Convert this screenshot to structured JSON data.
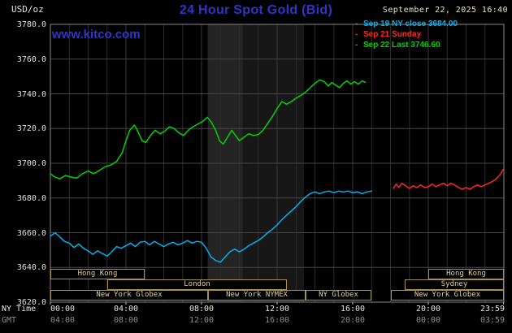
{
  "header": {
    "unit": "USD/oz",
    "title": "24 Hour Spot Gold (Bid)",
    "datetime": "September 22, 2025 16:40",
    "watermark": "www.kitco.com"
  },
  "colors": {
    "kitco_blue": "#3333cc",
    "background": "#000000",
    "grid_h": "#464646",
    "grid_v": "#2c2c2c",
    "axis_border": "#888888",
    "session_border": "#a6914f",
    "session_text": "#ddd09a"
  },
  "legend": [
    {
      "marker": "-",
      "label": "Sep 19 NY close 3684.00",
      "color": "#00b2f2"
    },
    {
      "marker": "-",
      "label": "Sep 21 Sunday",
      "color": "#ff2626"
    },
    {
      "marker": "-",
      "label": "Sep 22 Last 3746.60",
      "color": "#00d400"
    }
  ],
  "axis": {
    "ny_label": "NY Time",
    "gmt_label": "GMT",
    "tick_hours": [
      0,
      4,
      8,
      12,
      16,
      20,
      23.983
    ],
    "ny_ticks": [
      "00:00",
      "04:00",
      "08:00",
      "12:00",
      "16:00",
      "20:00",
      "23:59"
    ],
    "gmt_ticks": [
      "04:00",
      "08:00",
      "12:00",
      "16:00",
      "20:00",
      "00:00",
      "03:59"
    ]
  },
  "chart_data": {
    "type": "line",
    "title": "24 Hour Spot Gold (Bid)",
    "xlabel": "NY Time (hours)",
    "ylabel": "USD/oz",
    "xlim": [
      0,
      24
    ],
    "ylim": [
      3620,
      3780
    ],
    "yticks": [
      3620,
      3640,
      3660,
      3680,
      3700,
      3720,
      3740,
      3760,
      3780
    ],
    "ytick_labels": [
      "3620.0",
      "3640.0",
      "3660.0",
      "3680.0",
      "3700.0",
      "3720.0",
      "3740.0",
      "3760.0",
      "3780.0"
    ],
    "grid": true,
    "legend_position": "top-right",
    "bands": [
      {
        "start": 8.33,
        "end": 13.42,
        "color": "#171717"
      },
      {
        "start": 8.33,
        "end": 10.17,
        "color": "#242424"
      }
    ],
    "series": [
      {
        "name": "Sep 19 NY close",
        "close_value": 3684.0,
        "color": "#00b2f2",
        "points": [
          [
            0,
            3658
          ],
          [
            0.25,
            3660
          ],
          [
            0.5,
            3657.5
          ],
          [
            0.75,
            3655
          ],
          [
            1,
            3654
          ],
          [
            1.25,
            3651.5
          ],
          [
            1.5,
            3653.5
          ],
          [
            1.75,
            3651
          ],
          [
            2,
            3649.5
          ],
          [
            2.25,
            3647.5
          ],
          [
            2.5,
            3649.5
          ],
          [
            2.75,
            3648
          ],
          [
            3,
            3646.5
          ],
          [
            3.25,
            3649
          ],
          [
            3.5,
            3652
          ],
          [
            3.75,
            3651
          ],
          [
            4,
            3652.5
          ],
          [
            4.25,
            3654
          ],
          [
            4.5,
            3652
          ],
          [
            4.75,
            3654.5
          ],
          [
            5,
            3655
          ],
          [
            5.25,
            3653
          ],
          [
            5.5,
            3655
          ],
          [
            5.75,
            3653.5
          ],
          [
            6,
            3652
          ],
          [
            6.25,
            3653.5
          ],
          [
            6.5,
            3654.5
          ],
          [
            6.75,
            3653
          ],
          [
            7,
            3654
          ],
          [
            7.25,
            3655.5
          ],
          [
            7.5,
            3654
          ],
          [
            7.75,
            3655
          ],
          [
            8,
            3654.5
          ],
          [
            8.25,
            3651
          ],
          [
            8.5,
            3646
          ],
          [
            8.75,
            3644
          ],
          [
            9,
            3643
          ],
          [
            9.25,
            3646
          ],
          [
            9.5,
            3649
          ],
          [
            9.75,
            3650.5
          ],
          [
            10,
            3649
          ],
          [
            10.25,
            3650.5
          ],
          [
            10.5,
            3652.5
          ],
          [
            10.75,
            3654
          ],
          [
            11,
            3655.5
          ],
          [
            11.25,
            3657.5
          ],
          [
            11.5,
            3660
          ],
          [
            11.75,
            3662
          ],
          [
            12,
            3664.5
          ],
          [
            12.25,
            3667.5
          ],
          [
            12.5,
            3670
          ],
          [
            12.75,
            3672.5
          ],
          [
            13,
            3675
          ],
          [
            13.25,
            3678
          ],
          [
            13.5,
            3680.5
          ],
          [
            13.75,
            3682.5
          ],
          [
            14,
            3683.5
          ],
          [
            14.25,
            3682.5
          ],
          [
            14.5,
            3683.5
          ],
          [
            14.75,
            3684
          ],
          [
            15,
            3683
          ],
          [
            15.25,
            3684
          ],
          [
            15.5,
            3683.5
          ],
          [
            15.75,
            3684
          ],
          [
            16,
            3683
          ],
          [
            16.25,
            3683.5
          ],
          [
            16.5,
            3682.5
          ],
          [
            16.75,
            3683.5
          ],
          [
            17,
            3684
          ]
        ]
      },
      {
        "name": "Sep 21 Sunday",
        "color": "#ff2626",
        "points": [
          [
            18.15,
            3685.5
          ],
          [
            18.3,
            3688
          ],
          [
            18.45,
            3686
          ],
          [
            18.6,
            3688.5
          ],
          [
            18.8,
            3687
          ],
          [
            19,
            3685.5
          ],
          [
            19.2,
            3687
          ],
          [
            19.4,
            3686
          ],
          [
            19.6,
            3687.5
          ],
          [
            19.8,
            3686
          ],
          [
            20,
            3686.5
          ],
          [
            20.2,
            3688
          ],
          [
            20.4,
            3686.5
          ],
          [
            20.6,
            3687.5
          ],
          [
            20.8,
            3688.5
          ],
          [
            21,
            3687
          ],
          [
            21.2,
            3688.5
          ],
          [
            21.4,
            3687.5
          ],
          [
            21.6,
            3686
          ],
          [
            21.8,
            3685
          ],
          [
            22,
            3686
          ],
          [
            22.2,
            3685
          ],
          [
            22.4,
            3686.5
          ],
          [
            22.6,
            3687.5
          ],
          [
            22.8,
            3686.5
          ],
          [
            23,
            3687.5
          ],
          [
            23.2,
            3688.5
          ],
          [
            23.4,
            3689.5
          ],
          [
            23.6,
            3691
          ],
          [
            23.8,
            3693.5
          ],
          [
            23.97,
            3696.5
          ]
        ]
      },
      {
        "name": "Sep 22 Last",
        "last_value": 3746.6,
        "color": "#00d400",
        "points": [
          [
            0,
            3694
          ],
          [
            0.25,
            3692
          ],
          [
            0.5,
            3691
          ],
          [
            0.8,
            3693
          ],
          [
            1.1,
            3692
          ],
          [
            1.4,
            3691.5
          ],
          [
            1.7,
            3694
          ],
          [
            2,
            3695.5
          ],
          [
            2.3,
            3694
          ],
          [
            2.6,
            3696
          ],
          [
            2.9,
            3698
          ],
          [
            3.2,
            3699
          ],
          [
            3.5,
            3701
          ],
          [
            3.8,
            3706
          ],
          [
            4,
            3713
          ],
          [
            4.2,
            3719
          ],
          [
            4.45,
            3722
          ],
          [
            4.6,
            3719
          ],
          [
            4.85,
            3713
          ],
          [
            5.05,
            3712
          ],
          [
            5.3,
            3716
          ],
          [
            5.55,
            3719
          ],
          [
            5.8,
            3717
          ],
          [
            6.05,
            3718.5
          ],
          [
            6.3,
            3721
          ],
          [
            6.55,
            3720
          ],
          [
            6.8,
            3717.5
          ],
          [
            7.05,
            3716
          ],
          [
            7.3,
            3719
          ],
          [
            7.55,
            3721
          ],
          [
            7.8,
            3722.5
          ],
          [
            8.05,
            3724
          ],
          [
            8.3,
            3726.5
          ],
          [
            8.5,
            3724
          ],
          [
            8.75,
            3719
          ],
          [
            8.95,
            3713
          ],
          [
            9.15,
            3711
          ],
          [
            9.4,
            3715.5
          ],
          [
            9.6,
            3719
          ],
          [
            9.8,
            3716
          ],
          [
            10,
            3713
          ],
          [
            10.25,
            3715
          ],
          [
            10.5,
            3717
          ],
          [
            10.75,
            3716
          ],
          [
            11,
            3716.5
          ],
          [
            11.25,
            3719
          ],
          [
            11.5,
            3723
          ],
          [
            11.75,
            3727
          ],
          [
            12,
            3731.5
          ],
          [
            12.25,
            3735.5
          ],
          [
            12.5,
            3734
          ],
          [
            12.75,
            3735.5
          ],
          [
            13,
            3737.5
          ],
          [
            13.25,
            3739
          ],
          [
            13.5,
            3741
          ],
          [
            13.75,
            3743.5
          ],
          [
            14,
            3746
          ],
          [
            14.25,
            3748
          ],
          [
            14.5,
            3747
          ],
          [
            14.7,
            3744.5
          ],
          [
            14.9,
            3746.5
          ],
          [
            15.1,
            3745
          ],
          [
            15.3,
            3743.5
          ],
          [
            15.5,
            3746
          ],
          [
            15.7,
            3747.5
          ],
          [
            15.9,
            3745.5
          ],
          [
            16.1,
            3747
          ],
          [
            16.3,
            3745.5
          ],
          [
            16.5,
            3747.5
          ],
          [
            16.67,
            3746.6
          ]
        ]
      }
    ],
    "sessions": [
      {
        "row": 0,
        "start": 0,
        "end": 5,
        "label": "Hong Kong"
      },
      {
        "row": 0,
        "start": 20,
        "end": 23.98,
        "label": "Hong Kong"
      },
      {
        "row": 1,
        "start": 3,
        "end": 12.5,
        "label": "London"
      },
      {
        "row": 1,
        "start": 18.75,
        "end": 23.98,
        "label": "Sydney"
      },
      {
        "row": 2,
        "start": 0,
        "end": 8.33,
        "label": "New York Globex"
      },
      {
        "row": 2,
        "start": 8.33,
        "end": 13.5,
        "label": "New York NYMEX"
      },
      {
        "row": 2,
        "start": 13.5,
        "end": 17,
        "label": "NY Globex"
      },
      {
        "row": 2,
        "start": 18,
        "end": 23.98,
        "label": "New York Globex"
      }
    ]
  }
}
